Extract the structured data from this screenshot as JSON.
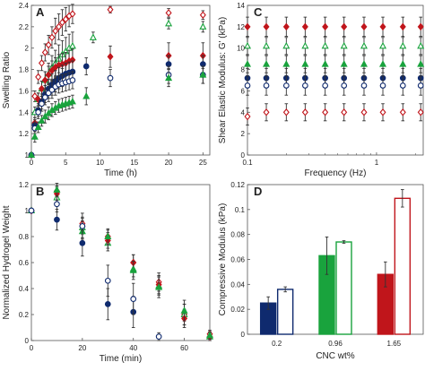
{
  "chart_data": [
    {
      "panel": "A",
      "type": "scatter",
      "xlabel": "Time (h)",
      "ylabel": "Swelling Ratio",
      "xlim": [
        0,
        26
      ],
      "ylim": [
        1,
        2.4
      ],
      "xticks": [
        0,
        5,
        10,
        15,
        20,
        25
      ],
      "yticks": [
        1,
        1.2,
        1.4,
        1.6,
        1.8,
        2,
        2.2,
        2.4
      ],
      "series": [
        {
          "color": "#c0151b",
          "marker": "diamond",
          "filled": false,
          "x": [
            0,
            0.5,
            1,
            1.5,
            2,
            2.5,
            3,
            3.5,
            4,
            4.5,
            5,
            5.5,
            6,
            11.5,
            20,
            25
          ],
          "y": [
            1,
            1.55,
            1.73,
            1.86,
            1.96,
            2.03,
            2.1,
            2.16,
            2.2,
            2.24,
            2.27,
            2.3,
            2.32,
            2.36,
            2.33,
            2.31
          ],
          "err": [
            0,
            0.05,
            0.06,
            0.07,
            0.08,
            0.09,
            0.1,
            0.12,
            0.12,
            0.12,
            0.11,
            0.1,
            0.09,
            0.03,
            0.04,
            0.04
          ]
        },
        {
          "color": "#19a33d",
          "marker": "triangle",
          "filled": false,
          "x": [
            0,
            0.5,
            1,
            1.5,
            2,
            2.5,
            3,
            3.5,
            4,
            4.5,
            5,
            5.5,
            6,
            9,
            20,
            25
          ],
          "y": [
            1,
            1.4,
            1.52,
            1.62,
            1.7,
            1.76,
            1.82,
            1.86,
            1.9,
            1.94,
            1.97,
            2.0,
            2.02,
            2.1,
            2.23,
            2.2
          ],
          "err": [
            0,
            0.05,
            0.06,
            0.07,
            0.08,
            0.1,
            0.11,
            0.12,
            0.13,
            0.13,
            0.13,
            0.13,
            0.13,
            0.05,
            0.05,
            0.05
          ]
        },
        {
          "color": "#c0151b",
          "marker": "diamond",
          "filled": true,
          "x": [
            0,
            0.5,
            1,
            1.5,
            2,
            2.5,
            3,
            3.5,
            4,
            4.5,
            5,
            5.5,
            6,
            11.5,
            20,
            25
          ],
          "y": [
            1,
            1.3,
            1.52,
            1.62,
            1.7,
            1.75,
            1.79,
            1.82,
            1.84,
            1.85,
            1.86,
            1.88,
            1.89,
            1.92,
            1.93,
            1.93
          ],
          "err": [
            0,
            0.05,
            0.06,
            0.07,
            0.08,
            0.08,
            0.09,
            0.09,
            0.1,
            0.1,
            0.1,
            0.1,
            0.1,
            0.1,
            0.12,
            0.12
          ]
        },
        {
          "color": "#0f2a6e",
          "marker": "circle",
          "filled": true,
          "x": [
            0,
            0.5,
            1,
            1.5,
            2,
            2.5,
            3,
            3.5,
            4,
            4.5,
            5,
            5.5,
            6,
            8,
            20,
            25
          ],
          "y": [
            1,
            1.28,
            1.42,
            1.5,
            1.57,
            1.62,
            1.66,
            1.69,
            1.72,
            1.74,
            1.76,
            1.77,
            1.78,
            1.83,
            1.85,
            1.85
          ],
          "err": [
            0,
            0.05,
            0.06,
            0.07,
            0.08,
            0.09,
            0.1,
            0.1,
            0.1,
            0.1,
            0.1,
            0.1,
            0.1,
            0.08,
            0.08,
            0.08
          ]
        },
        {
          "color": "#0f2a6e",
          "marker": "circle",
          "filled": false,
          "x": [
            0,
            0.5,
            1,
            1.5,
            2,
            2.5,
            3,
            3.5,
            4,
            4.5,
            5,
            5.5,
            6,
            11.5,
            20,
            25
          ],
          "y": [
            1,
            1.25,
            1.4,
            1.48,
            1.54,
            1.58,
            1.61,
            1.64,
            1.66,
            1.67,
            1.68,
            1.69,
            1.7,
            1.72,
            1.75,
            1.75
          ],
          "err": [
            0,
            0.05,
            0.06,
            0.07,
            0.07,
            0.08,
            0.08,
            0.08,
            0.08,
            0.08,
            0.08,
            0.08,
            0.08,
            0.08,
            0.08,
            0.08
          ]
        },
        {
          "color": "#19a33d",
          "marker": "triangle",
          "filled": true,
          "x": [
            0,
            0.5,
            1,
            1.5,
            2,
            2.5,
            3,
            3.5,
            4,
            4.5,
            5,
            5.5,
            6,
            8,
            20,
            25
          ],
          "y": [
            1,
            1.17,
            1.26,
            1.32,
            1.36,
            1.39,
            1.42,
            1.44,
            1.46,
            1.47,
            1.48,
            1.49,
            1.5,
            1.55,
            1.72,
            1.75
          ],
          "err": [
            0,
            0.05,
            0.05,
            0.05,
            0.06,
            0.06,
            0.06,
            0.06,
            0.06,
            0.06,
            0.06,
            0.06,
            0.06,
            0.08,
            0.08,
            0.08
          ]
        }
      ]
    },
    {
      "panel": "B",
      "type": "scatter",
      "xlabel": "Time (min)",
      "ylabel": "Normalized Hydrogel Weight",
      "xlim": [
        0,
        70
      ],
      "ylim": [
        0,
        1.2
      ],
      "xticks": [
        0,
        20,
        40,
        60
      ],
      "yticks": [
        0,
        0.2,
        0.4,
        0.6,
        0.8,
        1,
        1.2
      ],
      "series": [
        {
          "color": "#c0151b",
          "marker": "diamond",
          "filled": false,
          "x": [
            0,
            10,
            20,
            30,
            40,
            50,
            60,
            70
          ],
          "y": [
            1,
            1.15,
            0.9,
            0.8,
            0.6,
            0.45,
            0.2,
            0.05
          ],
          "err": [
            0,
            0.04,
            0.05,
            0.05,
            0.06,
            0.07,
            0.08,
            0.03
          ]
        },
        {
          "color": "#19a33d",
          "marker": "triangle",
          "filled": false,
          "x": [
            0,
            10,
            20,
            30,
            40,
            50,
            60,
            70
          ],
          "y": [
            1,
            1.1,
            0.87,
            0.75,
            0.55,
            0.42,
            0.2,
            0.03
          ],
          "err": [
            0,
            0.04,
            0.05,
            0.06,
            0.06,
            0.07,
            0.08,
            0.03
          ]
        },
        {
          "color": "#c0151b",
          "marker": "diamond",
          "filled": true,
          "x": [
            0,
            10,
            20,
            30,
            40,
            50,
            60,
            70
          ],
          "y": [
            1,
            1.13,
            0.88,
            0.77,
            0.6,
            0.43,
            0.17,
            0.03
          ],
          "err": [
            0,
            0.05,
            0.06,
            0.06,
            0.06,
            0.07,
            0.07,
            0.03
          ]
        },
        {
          "color": "#19a33d",
          "marker": "triangle",
          "filled": true,
          "x": [
            0,
            10,
            20,
            30,
            40,
            50,
            60,
            70
          ],
          "y": [
            1,
            1.16,
            0.84,
            0.8,
            0.54,
            0.41,
            0.23,
            0.04
          ],
          "err": [
            0,
            0.05,
            0.05,
            0.06,
            0.07,
            0.08,
            0.08,
            0.03
          ]
        },
        {
          "color": "#0f2a6e",
          "marker": "circle",
          "filled": true,
          "x": [
            0,
            10,
            20,
            30,
            40
          ],
          "y": [
            1,
            0.93,
            0.75,
            0.28,
            0.22
          ],
          "err": [
            0,
            0.08,
            0.1,
            0.12,
            0.12
          ]
        },
        {
          "color": "#0f2a6e",
          "marker": "circle",
          "filled": false,
          "x": [
            0,
            10,
            20,
            30,
            40,
            50
          ],
          "y": [
            1,
            1.05,
            0.88,
            0.46,
            0.32,
            0.03
          ],
          "err": [
            0,
            0.06,
            0.1,
            0.12,
            0.12,
            0.03
          ]
        }
      ]
    },
    {
      "panel": "C",
      "type": "scatter",
      "xlabel": "Frequency (Hz)",
      "ylabel": "Shear Elastic Modulus: G' (kPa)",
      "xscale": "log",
      "xlim": [
        0.1,
        2.3
      ],
      "ylim": [
        0,
        14
      ],
      "xticks": [
        0.1,
        1
      ],
      "yticks": [
        0,
        2,
        4,
        6,
        8,
        10,
        12,
        14
      ],
      "x": [
        0.1,
        0.14,
        0.2,
        0.28,
        0.4,
        0.56,
        0.8,
        1.12,
        1.6,
        2.2
      ],
      "series": [
        {
          "color": "#c0151b",
          "marker": "diamond",
          "filled": true,
          "y": [
            12,
            12,
            12,
            12,
            12,
            12,
            12,
            12,
            12,
            12
          ],
          "err": 0.9
        },
        {
          "color": "#19a33d",
          "marker": "triangle",
          "filled": false,
          "y": [
            10.2,
            10.2,
            10.2,
            10.2,
            10.2,
            10.2,
            10.2,
            10.2,
            10.2,
            10.2
          ],
          "err": 0.8
        },
        {
          "color": "#19a33d",
          "marker": "triangle",
          "filled": true,
          "y": [
            8.5,
            8.5,
            8.5,
            8.5,
            8.5,
            8.5,
            8.5,
            8.5,
            8.5,
            8.5
          ],
          "err": 0.8
        },
        {
          "color": "#0f2a6e",
          "marker": "circle",
          "filled": true,
          "y": [
            7.2,
            7.2,
            7.2,
            7.2,
            7.2,
            7.2,
            7.2,
            7.2,
            7.2,
            7.2
          ],
          "err": 0.9
        },
        {
          "color": "#0f2a6e",
          "marker": "circle",
          "filled": false,
          "y": [
            6.5,
            6.5,
            6.5,
            6.5,
            6.5,
            6.5,
            6.5,
            6.5,
            6.5,
            6.5
          ],
          "err": 0.9
        },
        {
          "color": "#c0151b",
          "marker": "diamond",
          "filled": false,
          "y": [
            3.6,
            4,
            4,
            4,
            4,
            4,
            4,
            4,
            4,
            4
          ],
          "err": 0.8
        }
      ]
    },
    {
      "panel": "D",
      "type": "bar",
      "xlabel": "CNC wt%",
      "ylabel": "Compressive Modulus (kPa)",
      "ylim": [
        0,
        0.12
      ],
      "yticks": [
        0,
        0.02,
        0.04,
        0.06,
        0.08,
        0.1,
        0.12
      ],
      "categories": [
        "0.2",
        "0.96",
        "1.65"
      ],
      "colors": [
        "#0f2a6e",
        "#19a33d",
        "#c0151b"
      ],
      "series": [
        {
          "filled": true,
          "values": [
            0.025,
            0.063,
            0.048
          ],
          "err": [
            0.005,
            0.015,
            0.01
          ]
        },
        {
          "filled": false,
          "values": [
            0.036,
            0.074,
            0.109
          ],
          "err": [
            0.002,
            0.001,
            0.007
          ]
        }
      ]
    }
  ]
}
